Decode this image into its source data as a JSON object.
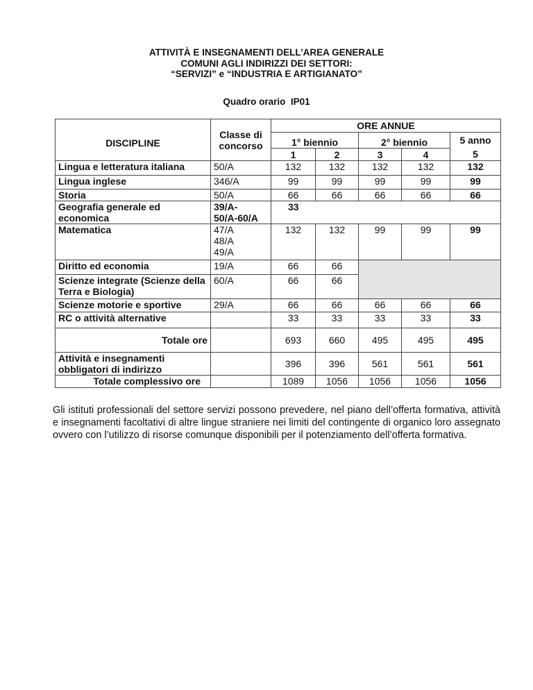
{
  "document": {
    "title_lines": [
      "ATTIVITÀ E INSEGNAMENTI DELL’AREA GENERALE",
      "COMUNI AGLI INDIRIZZI DEI SETTORI:",
      "“SERVIZI”  e  “INDUSTRIA  E ARTIGIANATO”"
    ],
    "subtitle": "Quadro orario  IP01",
    "paragraph": "Gli istituti professionali del settore servizi possono prevedere, nel piano dell’offerta formativa, attività e insegnamenti facoltativi di altre lingue straniere nei limiti del contingente di organico loro assegnato ovvero con l’utilizzo di risorse comunque disponibili per il potenziamento dell’offerta formativa."
  },
  "table": {
    "headers": {
      "discipline": "DISCIPLINE",
      "classe": "Classe di concorso",
      "ore_annue": "ORE ANNUE",
      "biennio1": "1° biennio",
      "biennio2": "2° biennio",
      "anno5": "5 anno",
      "years": [
        "1",
        "2",
        "3",
        "4",
        "5"
      ]
    },
    "shaded_cell_color": "#e4e4e4",
    "rows": [
      {
        "discipline": "Lingua e letteratura italiana",
        "classe": [
          "50/A"
        ],
        "values": [
          "132",
          "132",
          "132",
          "132",
          "132"
        ]
      },
      {
        "discipline": "Lingua inglese",
        "classe": [
          "346/A"
        ],
        "values": [
          "99",
          "99",
          "99",
          "99",
          "99"
        ]
      },
      {
        "discipline": "Storia",
        "classe": [
          "50/A"
        ],
        "values": [
          "66",
          "66",
          "66",
          "66",
          "66"
        ]
      },
      {
        "discipline": "Geografia generale ed economica",
        "classe": [
          "39/A-",
          "50/A-60/A"
        ],
        "classe_bold": true,
        "values": [
          "33",
          "",
          "",
          "",
          ""
        ]
      },
      {
        "discipline": "Matematica",
        "classe": [
          "47/A",
          "48/A",
          "49/A"
        ],
        "values": [
          "132",
          "132",
          "99",
          "99",
          "99"
        ]
      },
      {
        "discipline": "Diritto ed economia",
        "classe": [
          "19/A"
        ],
        "values": [
          "66",
          "66"
        ]
      },
      {
        "discipline": "Scienze integrate (Scienze della Terra e Biologia)",
        "classe": [
          "60/A"
        ],
        "values": [
          "66",
          "66"
        ]
      },
      {
        "discipline": "Scienze motorie e sportive",
        "classe": [
          "29/A"
        ],
        "values": [
          "66",
          "66",
          "66",
          "66",
          "66"
        ]
      },
      {
        "discipline": "RC o attività alternative",
        "classe": [
          ""
        ],
        "values": [
          "33",
          "33",
          "33",
          "33",
          "33"
        ]
      },
      {
        "discipline": "Totale ore",
        "classe": [
          ""
        ],
        "values": [
          "693",
          "660",
          "495",
          "495",
          "495"
        ]
      },
      {
        "discipline": "Attività e insegnamenti obbligatori di indirizzo",
        "classe": [
          ""
        ],
        "values": [
          "396",
          "396",
          "561",
          "561",
          "561"
        ]
      },
      {
        "discipline": "Totale complessivo ore",
        "classe": [
          ""
        ],
        "values": [
          "1089",
          "1056",
          "1056",
          "1056",
          "1056"
        ]
      }
    ]
  }
}
